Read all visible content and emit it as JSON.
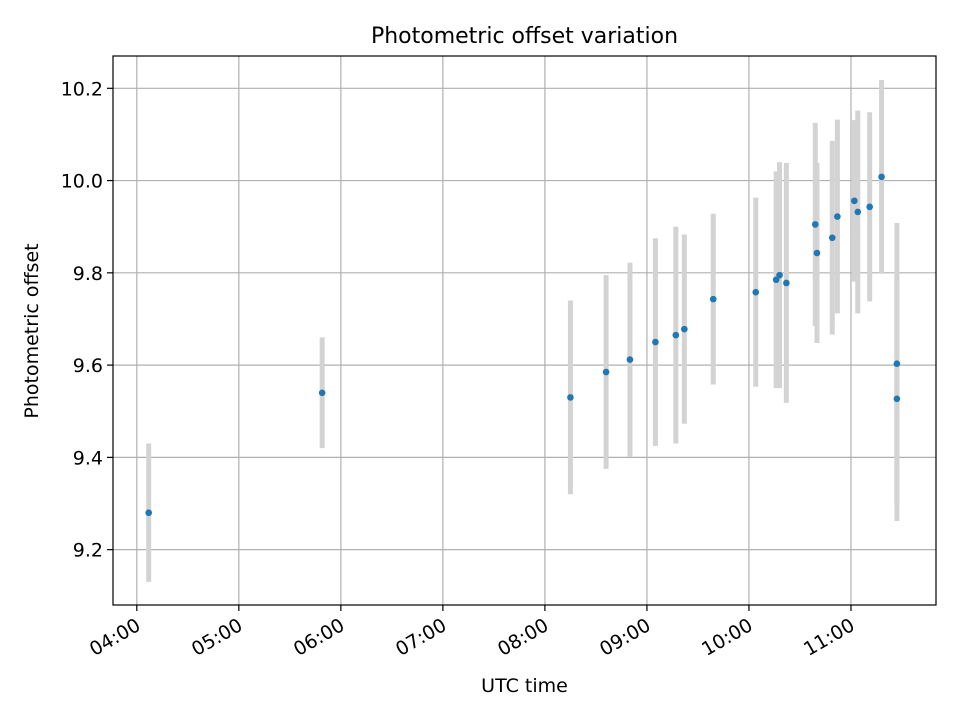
{
  "chart_data": {
    "type": "scatter",
    "title": "Photometric offset variation",
    "xlabel": "UTC time",
    "ylabel": "Photometric offset",
    "x_ticks": [
      "04:00",
      "05:00",
      "06:00",
      "07:00",
      "08:00",
      "09:00",
      "10:00",
      "11:00"
    ],
    "y_ticks": [
      "9.2",
      "9.4",
      "9.6",
      "9.8",
      "10.0",
      "10.2"
    ],
    "xlim": [
      "03:46",
      "11:50"
    ],
    "ylim": [
      9.08,
      10.27
    ],
    "grid": true,
    "colors": {
      "point": "#1f77b4",
      "errorbar": "#d3d3d3",
      "grid": "#b0b0b0"
    },
    "points": [
      {
        "x": "04:07",
        "y": 9.28,
        "err": 0.15
      },
      {
        "x": "05:49",
        "y": 9.54,
        "err": 0.12
      },
      {
        "x": "08:15",
        "y": 9.53,
        "err": 0.21
      },
      {
        "x": "08:36",
        "y": 9.585,
        "err": 0.21
      },
      {
        "x": "08:50",
        "y": 9.612,
        "err": 0.21
      },
      {
        "x": "09:05",
        "y": 9.65,
        "err": 0.225
      },
      {
        "x": "09:17",
        "y": 9.665,
        "err": 0.235
      },
      {
        "x": "09:22",
        "y": 9.678,
        "err": 0.205
      },
      {
        "x": "09:39",
        "y": 9.743,
        "err": 0.185
      },
      {
        "x": "10:04",
        "y": 9.758,
        "err": 0.205
      },
      {
        "x": "10:16",
        "y": 9.785,
        "err": 0.235
      },
      {
        "x": "10:18",
        "y": 9.795,
        "err": 0.245
      },
      {
        "x": "10:22",
        "y": 9.778,
        "err": 0.26
      },
      {
        "x": "10:39",
        "y": 9.905,
        "err": 0.22
      },
      {
        "x": "10:40",
        "y": 9.843,
        "err": 0.195
      },
      {
        "x": "10:49",
        "y": 9.876,
        "err": 0.21
      },
      {
        "x": "10:52",
        "y": 9.922,
        "err": 0.21
      },
      {
        "x": "11:02",
        "y": 9.956,
        "err": 0.175
      },
      {
        "x": "11:04",
        "y": 9.932,
        "err": 0.22
      },
      {
        "x": "11:11",
        "y": 9.943,
        "err": 0.205
      },
      {
        "x": "11:18",
        "y": 10.008,
        "err": 0.21
      },
      {
        "x": "11:27",
        "y": 9.603,
        "err": 0.305
      },
      {
        "x": "11:27",
        "y": 9.527,
        "err": 0.265
      }
    ]
  }
}
